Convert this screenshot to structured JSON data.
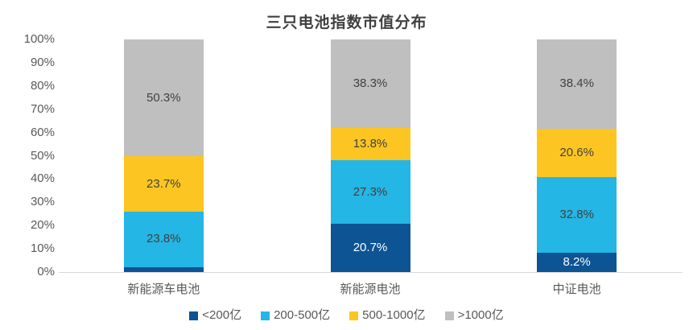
{
  "chart_data": {
    "type": "bar",
    "stacked": true,
    "percent_stacked": true,
    "title": "三只电池指数市值分布",
    "categories": [
      "新能源车电池",
      "新能源电池",
      "中证电池"
    ],
    "series": [
      {
        "name": "<200亿",
        "color": "#0C5494",
        "label_color": "#FFFFFF",
        "values": [
          2.2,
          20.7,
          8.2
        ]
      },
      {
        "name": "200-500亿",
        "color": "#24B6E4",
        "label_color": "#404040",
        "values": [
          23.8,
          27.3,
          32.8
        ]
      },
      {
        "name": "500-1000亿",
        "color": "#FDC521",
        "label_color": "#404040",
        "values": [
          23.7,
          13.8,
          20.6
        ]
      },
      {
        "name": ">1000亿",
        "color": "#BFBFBF",
        "label_color": "#404040",
        "values": [
          50.3,
          38.3,
          38.4
        ]
      }
    ],
    "value_suffix": "%",
    "ylim": [
      0,
      100
    ],
    "ytick_step": 10,
    "ytick_suffix": "%",
    "ytick_labels": [
      "0%",
      "10%",
      "20%",
      "30%",
      "40%",
      "50%",
      "60%",
      "70%",
      "80%",
      "90%",
      "100%"
    ],
    "grid": false,
    "legend_position": "bottom",
    "colors": {
      "title_text": "#404040",
      "axis_text": "#595959",
      "data_label_dark": "#404040",
      "data_label_light": "#FFFFFF",
      "baseline": "#D9D9D9",
      "background": "#FFFFFF"
    }
  }
}
